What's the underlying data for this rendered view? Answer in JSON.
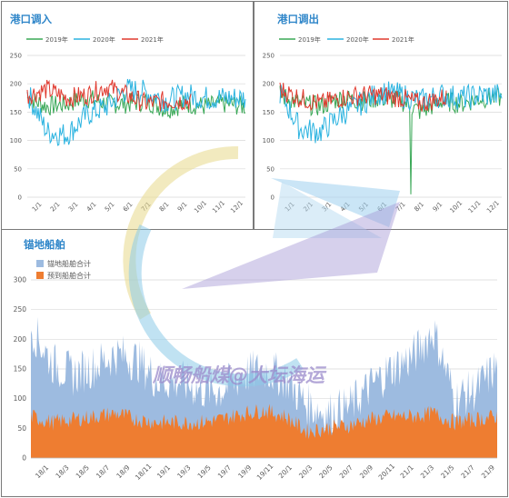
{
  "colors": {
    "y2019": "#3aa857",
    "y2020": "#2bb3e0",
    "y2021": "#e03a2f",
    "anchor_total": "#9dbbe0",
    "anchor_expected": "#ee7d31",
    "title": "#2f86c9",
    "watermark_text": "#9b8bcc"
  },
  "watermark": {
    "text": "顺畅船煤@大坛海运"
  },
  "charts": {
    "inbound": {
      "title": "港口调入",
      "legend": [
        "2019年",
        "2020年",
        "2021年"
      ],
      "yticks": [
        "0",
        "50",
        "100",
        "150",
        "200",
        "250"
      ],
      "xticks": [
        "1/1",
        "2/1",
        "3/1",
        "4/1",
        "5/1",
        "6/1",
        "7/1",
        "8/1",
        "9/1",
        "10/1",
        "11/1",
        "12/1"
      ]
    },
    "outbound": {
      "title": "港口调出",
      "legend": [
        "2019年",
        "2020年",
        "2021年"
      ],
      "yticks": [
        "0",
        "50",
        "100",
        "150",
        "200",
        "250"
      ],
      "xticks": [
        "1/1",
        "2/1",
        "3/1",
        "4/1",
        "5/1",
        "6/1",
        "7/1",
        "8/1",
        "9/1",
        "10/1",
        "11/1",
        "12/1"
      ]
    },
    "anchor": {
      "title": "锚地船舶",
      "legend": [
        "锚地船舶合计",
        "预到船舶合计"
      ],
      "yticks": [
        "0",
        "50",
        "100",
        "150",
        "200",
        "250",
        "300"
      ],
      "xticks": [
        "18/1",
        "18/3",
        "18/5",
        "18/7",
        "18/9",
        "18/11",
        "19/1",
        "19/3",
        "19/5",
        "19/7",
        "19/9",
        "19/11",
        "20/1",
        "20/3",
        "20/5",
        "20/7",
        "20/9",
        "20/11",
        "21/1",
        "21/3",
        "21/5",
        "21/7",
        "21/9"
      ]
    }
  },
  "chart_data": [
    {
      "type": "line",
      "title": "港口调入",
      "x": [
        "1/1",
        "2/1",
        "3/1",
        "4/1",
        "5/1",
        "6/1",
        "7/1",
        "8/1",
        "9/1",
        "10/1",
        "11/1",
        "12/1"
      ],
      "ylim": [
        0,
        250
      ],
      "series": [
        {
          "name": "2019年",
          "values": [
            175,
            160,
            165,
            175,
            165,
            165,
            170,
            155,
            165,
            160,
            165,
            160
          ]
        },
        {
          "name": "2020年",
          "values": [
            185,
            115,
            110,
            145,
            160,
            190,
            185,
            170,
            180,
            175,
            175,
            175
          ]
        },
        {
          "name": "2021年",
          "values": [
            180,
            190,
            175,
            180,
            195,
            180,
            165,
            170,
            170,
            null,
            null,
            null
          ]
        }
      ]
    },
    {
      "type": "line",
      "title": "港口调出",
      "x": [
        "1/1",
        "2/1",
        "3/1",
        "4/1",
        "5/1",
        "6/1",
        "7/1",
        "8/1",
        "9/1",
        "10/1",
        "11/1",
        "12/1"
      ],
      "ylim": [
        0,
        250
      ],
      "series": [
        {
          "name": "2019年",
          "values": [
            180,
            165,
            160,
            175,
            170,
            175,
            170,
            150,
            170,
            165,
            175,
            175
          ]
        },
        {
          "name": "2020年",
          "values": [
            185,
            120,
            115,
            145,
            165,
            185,
            180,
            170,
            180,
            175,
            180,
            180
          ]
        },
        {
          "name": "2021年",
          "values": [
            190,
            175,
            165,
            175,
            180,
            180,
            175,
            165,
            175,
            null,
            null,
            null
          ]
        }
      ]
    },
    {
      "type": "area",
      "title": "锚地船舶",
      "x": [
        "18/1",
        "18/3",
        "18/5",
        "18/7",
        "18/9",
        "18/11",
        "19/1",
        "19/3",
        "19/5",
        "19/7",
        "19/9",
        "19/11",
        "20/1",
        "20/3",
        "20/5",
        "20/7",
        "20/9",
        "20/11",
        "21/1",
        "21/3",
        "21/5",
        "21/7",
        "21/9"
      ],
      "ylim": [
        0,
        300
      ],
      "series": [
        {
          "name": "锚地船舶合计",
          "values": [
            220,
            160,
            140,
            155,
            175,
            165,
            130,
            130,
            115,
            115,
            140,
            150,
            135,
            90,
            75,
            85,
            120,
            150,
            170,
            215,
            100,
            115,
            155
          ]
        },
        {
          "name": "预到船舶合计",
          "values": [
            70,
            60,
            65,
            70,
            75,
            65,
            60,
            60,
            60,
            65,
            75,
            80,
            70,
            45,
            50,
            55,
            65,
            70,
            70,
            75,
            60,
            65,
            70
          ]
        }
      ]
    }
  ]
}
